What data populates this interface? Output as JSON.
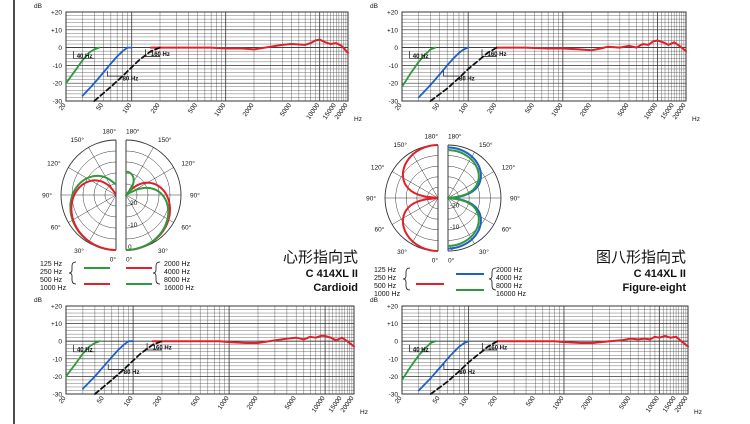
{
  "colors": {
    "red": "#e0202a",
    "blue": "#1f5fc8",
    "green": "#2e9a3c",
    "black": "#111111",
    "grid": "#333333",
    "background": "#ffffff"
  },
  "chart_data": [
    {
      "id": "freq-cardioid",
      "type": "line",
      "x_scale": "log",
      "xlim": [
        20,
        20000
      ],
      "ylim": [
        -30,
        20
      ],
      "ylabel": "dB",
      "xlabel": "Hz",
      "y_ticks": [
        "+20",
        "+10",
        "0",
        "-10",
        "-20",
        "-30"
      ],
      "x_ticks": [
        "20",
        "50",
        "100",
        "200",
        "500",
        "1000",
        "2000",
        "5000",
        "10000",
        "15000",
        "20000"
      ],
      "annotations": [
        "40 Hz",
        "80 Hz",
        "160 Hz"
      ],
      "series": [
        {
          "color": "red",
          "style": "solid",
          "points": [
            [
              160,
              0
            ],
            [
              300,
              0
            ],
            [
              700,
              0
            ],
            [
              1000,
              -0.5
            ],
            [
              1500,
              -0.5
            ],
            [
              2000,
              -1
            ],
            [
              3000,
              0.5
            ],
            [
              4000,
              1.5
            ],
            [
              5000,
              2
            ],
            [
              7000,
              1.5
            ],
            [
              8000,
              2.5
            ],
            [
              9000,
              4
            ],
            [
              10000,
              4.5
            ],
            [
              11500,
              3
            ],
            [
              13000,
              2
            ],
            [
              15000,
              2.5
            ],
            [
              17000,
              1
            ],
            [
              20000,
              -3
            ]
          ]
        },
        {
          "color": "green",
          "style": "solid",
          "points": [
            [
              20,
              -20
            ],
            [
              25,
              -13
            ],
            [
              30,
              -7
            ],
            [
              35,
              -3
            ],
            [
              40,
              -1
            ],
            [
              45,
              0
            ]
          ]
        },
        {
          "color": "blue",
          "style": "solid",
          "points": [
            [
              30,
              -27
            ],
            [
              40,
              -20
            ],
            [
              50,
              -14
            ],
            [
              60,
              -9
            ],
            [
              70,
              -5
            ],
            [
              80,
              -2
            ],
            [
              90,
              0
            ],
            [
              100,
              0
            ]
          ]
        },
        {
          "color": "black",
          "style": "dashed",
          "points": [
            [
              40,
              -30
            ],
            [
              60,
              -22
            ],
            [
              80,
              -16
            ],
            [
              100,
              -11
            ],
            [
              120,
              -7
            ],
            [
              160,
              -2
            ],
            [
              200,
              0
            ]
          ]
        }
      ]
    },
    {
      "id": "freq-figure8",
      "type": "line",
      "x_scale": "log",
      "xlim": [
        20,
        20000
      ],
      "ylim": [
        -30,
        20
      ],
      "ylabel": "dB",
      "xlabel": "Hz",
      "y_ticks": [
        "+20",
        "+10",
        "0",
        "-10",
        "-20",
        "-30"
      ],
      "x_ticks": [
        "20",
        "50",
        "100",
        "200",
        "500",
        "1000",
        "2000",
        "5000",
        "10000",
        "15000",
        "20000"
      ],
      "annotations": [
        "40 Hz",
        "80 Hz",
        "160 Hz"
      ],
      "series": [
        {
          "color": "red",
          "style": "solid",
          "points": [
            [
              200,
              0
            ],
            [
              400,
              0
            ],
            [
              700,
              -0.5
            ],
            [
              1000,
              -0.5
            ],
            [
              1500,
              -1
            ],
            [
              2000,
              -1.5
            ],
            [
              2500,
              -0.5
            ],
            [
              3000,
              0.5
            ],
            [
              4000,
              0
            ],
            [
              5000,
              1
            ],
            [
              6000,
              0
            ],
            [
              7000,
              2
            ],
            [
              8000,
              1.5
            ],
            [
              9000,
              3.5
            ],
            [
              10000,
              4
            ],
            [
              11500,
              3
            ],
            [
              13000,
              1.5
            ],
            [
              15000,
              3
            ],
            [
              17000,
              1
            ],
            [
              20000,
              -2
            ]
          ]
        },
        {
          "color": "green",
          "style": "solid",
          "points": [
            [
              20,
              -22
            ],
            [
              25,
              -14
            ],
            [
              30,
              -8
            ],
            [
              35,
              -4
            ],
            [
              40,
              -1
            ],
            [
              45,
              0
            ]
          ]
        },
        {
          "color": "blue",
          "style": "solid",
          "points": [
            [
              30,
              -28
            ],
            [
              40,
              -21
            ],
            [
              50,
              -15
            ],
            [
              60,
              -10
            ],
            [
              70,
              -6
            ],
            [
              80,
              -3
            ],
            [
              90,
              -1
            ],
            [
              100,
              0
            ]
          ]
        },
        {
          "color": "black",
          "style": "dashed",
          "points": [
            [
              40,
              -30
            ],
            [
              60,
              -23
            ],
            [
              80,
              -17
            ],
            [
              100,
              -12
            ],
            [
              130,
              -7
            ],
            [
              160,
              -3
            ],
            [
              200,
              0
            ]
          ]
        }
      ]
    },
    {
      "id": "freq-cardioid-2",
      "type": "line",
      "x_scale": "log",
      "xlim": [
        20,
        20000
      ],
      "ylim": [
        -30,
        20
      ],
      "ylabel": "dB",
      "xlabel": "Hz",
      "y_ticks": [
        "+20",
        "+10",
        "0",
        "-10",
        "-20",
        "-30"
      ],
      "x_ticks": [
        "20",
        "50",
        "100",
        "200",
        "500",
        "1000",
        "2000",
        "5000",
        "10000",
        "15000",
        "20000"
      ],
      "annotations": [
        "40 Hz",
        "80 Hz",
        "160 Hz"
      ],
      "series": [
        {
          "color": "red",
          "style": "solid",
          "points": [
            [
              160,
              0
            ],
            [
              400,
              0
            ],
            [
              800,
              0
            ],
            [
              1000,
              -0.5
            ],
            [
              1500,
              -1
            ],
            [
              2000,
              -1
            ],
            [
              3000,
              0.5
            ],
            [
              4000,
              1.5
            ],
            [
              5000,
              2
            ],
            [
              6000,
              1
            ],
            [
              7000,
              2.5
            ],
            [
              8000,
              2
            ],
            [
              9000,
              3
            ],
            [
              10000,
              3
            ],
            [
              11500,
              2
            ],
            [
              13000,
              0.5
            ],
            [
              15000,
              2
            ],
            [
              17000,
              0
            ],
            [
              20000,
              -3
            ]
          ]
        },
        {
          "color": "green",
          "style": "solid",
          "points": [
            [
              20,
              -20
            ],
            [
              25,
              -13
            ],
            [
              30,
              -7
            ],
            [
              35,
              -3
            ],
            [
              40,
              -1
            ],
            [
              45,
              0
            ]
          ]
        },
        {
          "color": "blue",
          "style": "solid",
          "points": [
            [
              30,
              -27
            ],
            [
              40,
              -20
            ],
            [
              50,
              -14
            ],
            [
              60,
              -9
            ],
            [
              70,
              -5
            ],
            [
              80,
              -2
            ],
            [
              90,
              0
            ],
            [
              100,
              0
            ]
          ]
        },
        {
          "color": "black",
          "style": "dashed",
          "points": [
            [
              40,
              -30
            ],
            [
              60,
              -22
            ],
            [
              80,
              -16
            ],
            [
              100,
              -11
            ],
            [
              120,
              -7
            ],
            [
              160,
              -2
            ],
            [
              200,
              0
            ]
          ]
        }
      ]
    },
    {
      "id": "freq-figure8-2",
      "type": "line",
      "x_scale": "log",
      "xlim": [
        20,
        20000
      ],
      "ylim": [
        -30,
        20
      ],
      "ylabel": "dB",
      "xlabel": "Hz",
      "y_ticks": [
        "+20",
        "+10",
        "0",
        "-10",
        "-20",
        "-30"
      ],
      "x_ticks": [
        "20",
        "50",
        "100",
        "200",
        "500",
        "1000",
        "2000",
        "5000",
        "10000",
        "15000",
        "20000"
      ],
      "annotations": [
        "40 Hz",
        "80 Hz",
        "160 Hz"
      ],
      "series": [
        {
          "color": "red",
          "style": "solid",
          "points": [
            [
              200,
              0
            ],
            [
              400,
              0
            ],
            [
              800,
              0
            ],
            [
              1000,
              -0.5
            ],
            [
              1500,
              -1
            ],
            [
              2000,
              -1
            ],
            [
              3000,
              0
            ],
            [
              4000,
              0.5
            ],
            [
              5000,
              1.5
            ],
            [
              6000,
              1
            ],
            [
              7000,
              1.5
            ],
            [
              8000,
              1
            ],
            [
              9000,
              2.5
            ],
            [
              10000,
              2
            ],
            [
              11500,
              3
            ],
            [
              13000,
              2
            ],
            [
              15000,
              2.5
            ],
            [
              17000,
              0
            ],
            [
              20000,
              -3
            ]
          ]
        },
        {
          "color": "green",
          "style": "solid",
          "points": [
            [
              20,
              -22
            ],
            [
              25,
              -14
            ],
            [
              30,
              -8
            ],
            [
              35,
              -4
            ],
            [
              40,
              -1
            ],
            [
              45,
              0
            ]
          ]
        },
        {
          "color": "blue",
          "style": "solid",
          "points": [
            [
              30,
              -28
            ],
            [
              40,
              -21
            ],
            [
              50,
              -15
            ],
            [
              60,
              -10
            ],
            [
              70,
              -6
            ],
            [
              80,
              -3
            ],
            [
              90,
              -1
            ],
            [
              100,
              0
            ]
          ]
        },
        {
          "color": "black",
          "style": "dashed",
          "points": [
            [
              40,
              -30
            ],
            [
              60,
              -23
            ],
            [
              80,
              -17
            ],
            [
              100,
              -12
            ],
            [
              130,
              -7
            ],
            [
              160,
              -3
            ],
            [
              200,
              0
            ]
          ]
        }
      ]
    },
    {
      "id": "polar-cardioid",
      "type": "polar",
      "pattern": "cardioid",
      "angle_labels_left": [
        "180°",
        "150°",
        "120°",
        "90°",
        "60°",
        "30°",
        "0°"
      ],
      "angle_labels_right": [
        "180°",
        "150°",
        "120°",
        "90°",
        "60°",
        "30°",
        "0°"
      ],
      "radial_labels": [
        "-20",
        "-10",
        "0"
      ],
      "left_series": [
        "green",
        "red"
      ],
      "right_series": [
        "red",
        "green"
      ]
    },
    {
      "id": "polar-figure8",
      "type": "polar",
      "pattern": "figure-eight",
      "angle_labels_left": [
        "180°",
        "150°",
        "120°",
        "90°",
        "60°",
        "30°",
        "0°"
      ],
      "angle_labels_right": [
        "180°",
        "150°",
        "120°",
        "90°",
        "60°",
        "30°",
        "0°"
      ],
      "radial_labels": [
        "-20",
        "-10",
        "0"
      ],
      "left_series": [
        "red"
      ],
      "right_series": [
        "blue",
        "green"
      ]
    }
  ],
  "legend_cardioid": {
    "left_labels": [
      "125 Hz",
      "250 Hz",
      "500 Hz",
      "1000 Hz"
    ],
    "right_labels": [
      "2000 Hz",
      "4000 Hz",
      "8000 Hz",
      "16000 Hz"
    ],
    "title_cn": "心形指向式",
    "model": "C 414XL II",
    "pattern": "Cardioid"
  },
  "legend_figure8": {
    "left_labels": [
      "125 Hz",
      "250 Hz",
      "500 Hz",
      "1000 Hz"
    ],
    "right_labels": [
      "2000 Hz",
      "4000 Hz",
      "8000 Hz",
      "16000 Hz"
    ],
    "title_cn": "图八形指向式",
    "model": "C 414XL II",
    "pattern": "Figure-eight"
  }
}
